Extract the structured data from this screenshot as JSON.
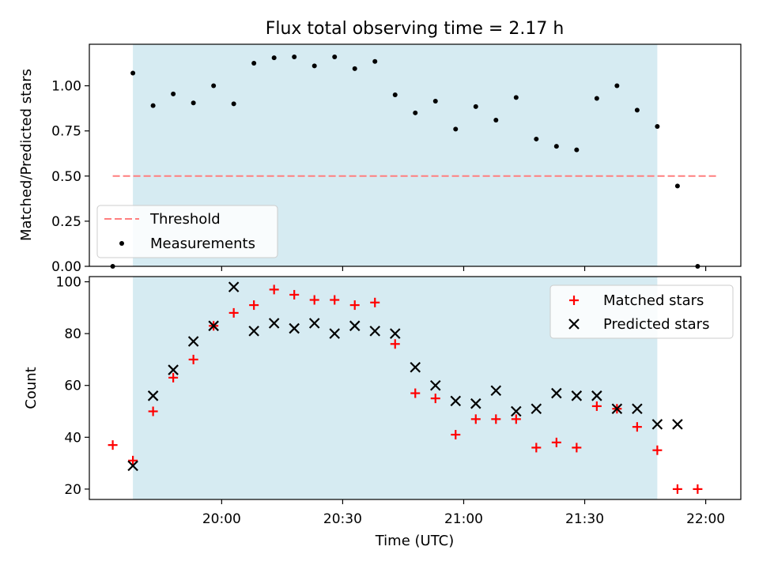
{
  "chart_data": {
    "title": "Flux total observing time = 2.17 h",
    "xlabel": "Time (UTC)",
    "x_tick_labels": [
      "20:00",
      "20:30",
      "21:00",
      "21:30",
      "22:00"
    ],
    "x_ticks_minutes_after_19": [
      60,
      90,
      120,
      150,
      180
    ],
    "x_range_minutes_after_19": [
      27.2,
      188.7
    ],
    "shaded_span_minutes_after_19": [
      38,
      168
    ],
    "shade_color": "#add8e6",
    "colors": {
      "threshold": "#ff7f7f",
      "measurement": "#000000",
      "matched": "#ff0000",
      "predicted": "#000000"
    },
    "x_times": [
      "19:33",
      "19:38",
      "19:43",
      "19:48",
      "19:53",
      "19:58",
      "20:03",
      "20:08",
      "20:13",
      "20:18",
      "20:23",
      "20:28",
      "20:33",
      "20:38",
      "20:43",
      "20:48",
      "20:53",
      "20:58",
      "21:03",
      "21:08",
      "21:13",
      "21:18",
      "21:23",
      "21:28",
      "21:33",
      "21:38",
      "21:43",
      "21:48",
      "21:53",
      "21:58",
      "22:03"
    ],
    "x_minutes_after_19": [
      33,
      38,
      43,
      48,
      53,
      58,
      63,
      68,
      73,
      78,
      83,
      88,
      93,
      98,
      103,
      108,
      113,
      118,
      123,
      128,
      133,
      138,
      143,
      148,
      153,
      158,
      163,
      168,
      173,
      178,
      183
    ],
    "panels": [
      {
        "type": "scatter",
        "ylabel": "Matched/Predicted stars",
        "ylim": [
          0,
          1.23
        ],
        "y_ticks": [
          0.0,
          0.25,
          0.5,
          0.75,
          1.0
        ],
        "y_tick_labels": [
          "0.00",
          "0.25",
          "0.50",
          "0.75",
          "1.00"
        ],
        "legend_position": "lower-left",
        "threshold": {
          "name": "Threshold",
          "value": 0.5,
          "x_range_minutes_after_19": [
            33,
            183
          ]
        },
        "series": [
          {
            "name": "Measurements",
            "marker": "dot",
            "values": [
              0.0,
              1.07,
              0.89,
              0.955,
              0.905,
              1.0,
              0.9,
              1.125,
              1.155,
              1.16,
              1.11,
              1.16,
              1.095,
              1.135,
              0.95,
              0.85,
              0.915,
              0.76,
              0.885,
              0.81,
              0.935,
              0.705,
              0.665,
              0.645,
              0.93,
              1.0,
              0.865,
              0.775,
              0.445,
              0.0,
              null
            ]
          }
        ]
      },
      {
        "type": "scatter",
        "ylabel": "Count",
        "ylim": [
          16,
          102
        ],
        "y_ticks": [
          20,
          40,
          60,
          80,
          100
        ],
        "y_tick_labels": [
          "20",
          "40",
          "60",
          "80",
          "100"
        ],
        "legend_position": "upper-right",
        "series": [
          {
            "name": "Matched stars",
            "marker": "plus",
            "values": [
              37,
              31,
              50,
              63,
              70,
              83,
              88,
              91,
              97,
              95,
              93,
              93,
              91,
              92,
              76,
              57,
              55,
              41,
              47,
              47,
              47,
              36,
              38,
              36,
              52,
              51,
              44,
              35,
              20,
              20,
              null
            ]
          },
          {
            "name": "Predicted stars",
            "marker": "x",
            "values": [
              null,
              29,
              56,
              66,
              77,
              83,
              98,
              81,
              84,
              82,
              84,
              80,
              83,
              81,
              80,
              67,
              60,
              54,
              53,
              58,
              50,
              51,
              57,
              56,
              56,
              51,
              51,
              45,
              45,
              null,
              null
            ]
          }
        ]
      }
    ]
  }
}
